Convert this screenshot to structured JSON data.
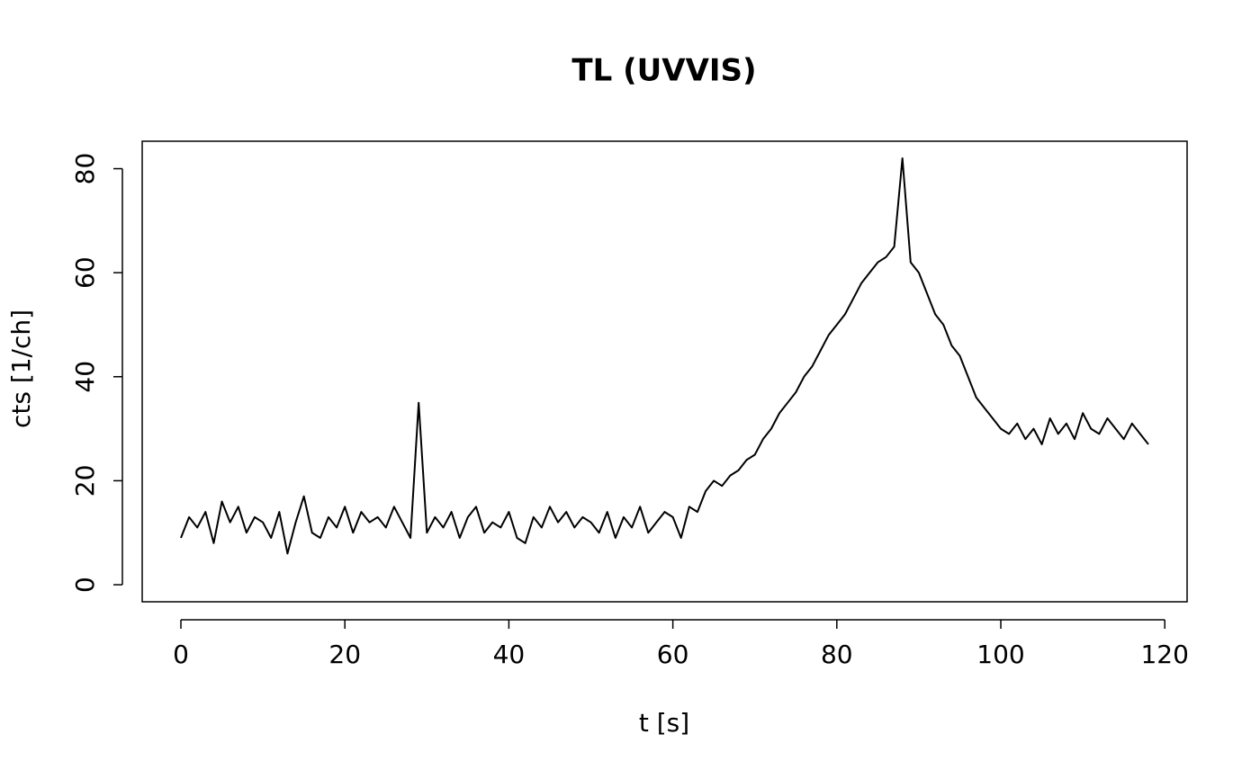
{
  "chart_data": {
    "type": "line",
    "title": "TL (UVVIS)",
    "x_label": "t [s]",
    "y_label": "cts [1/ch]",
    "x": [
      0,
      1,
      2,
      3,
      4,
      5,
      6,
      7,
      8,
      9,
      10,
      11,
      12,
      13,
      14,
      15,
      16,
      17,
      18,
      19,
      20,
      21,
      22,
      23,
      24,
      25,
      26,
      27,
      28,
      29,
      30,
      31,
      32,
      33,
      34,
      35,
      36,
      37,
      38,
      39,
      40,
      41,
      42,
      43,
      44,
      45,
      46,
      47,
      48,
      49,
      50,
      51,
      52,
      53,
      54,
      55,
      56,
      57,
      58,
      59,
      60,
      61,
      62,
      63,
      64,
      65,
      66,
      67,
      68,
      69,
      70,
      71,
      72,
      73,
      74,
      75,
      76,
      77,
      78,
      79,
      80,
      81,
      82,
      83,
      84,
      85,
      86,
      87,
      88,
      89,
      90,
      91,
      92,
      93,
      94,
      95,
      96,
      97,
      98,
      99,
      100,
      101,
      102,
      103,
      104,
      105,
      106,
      107,
      108,
      109,
      110,
      111,
      112,
      113,
      114,
      115,
      116,
      117,
      118
    ],
    "series": [
      {
        "name": "TL",
        "color": "#000000",
        "values": [
          9,
          13,
          11,
          14,
          8,
          16,
          12,
          15,
          10,
          13,
          12,
          9,
          14,
          6,
          12,
          17,
          10,
          9,
          13,
          11,
          15,
          10,
          14,
          12,
          13,
          11,
          15,
          12,
          9,
          35,
          10,
          13,
          11,
          14,
          9,
          13,
          15,
          10,
          12,
          11,
          14,
          9,
          8,
          13,
          11,
          15,
          12,
          14,
          11,
          13,
          12,
          10,
          14,
          9,
          13,
          11,
          15,
          10,
          12,
          14,
          13,
          9,
          15,
          14,
          18,
          20,
          19,
          21,
          22,
          24,
          25,
          28,
          30,
          33,
          35,
          37,
          40,
          42,
          45,
          48,
          50,
          52,
          55,
          58,
          60,
          62,
          63,
          65,
          82,
          62,
          60,
          56,
          52,
          50,
          46,
          44,
          40,
          36,
          34,
          32,
          30,
          29,
          31,
          28,
          30,
          27,
          32,
          29,
          31,
          28,
          33,
          30,
          29,
          32,
          30,
          28,
          31,
          29,
          27
        ]
      }
    ],
    "xlim": [
      -4.72,
      122.72
    ],
    "ylim": [
      -3.28,
      85.28
    ],
    "xticks": [
      0,
      20,
      40,
      60,
      80,
      100,
      120
    ],
    "yticks": [
      0,
      20,
      40,
      60,
      80
    ]
  }
}
